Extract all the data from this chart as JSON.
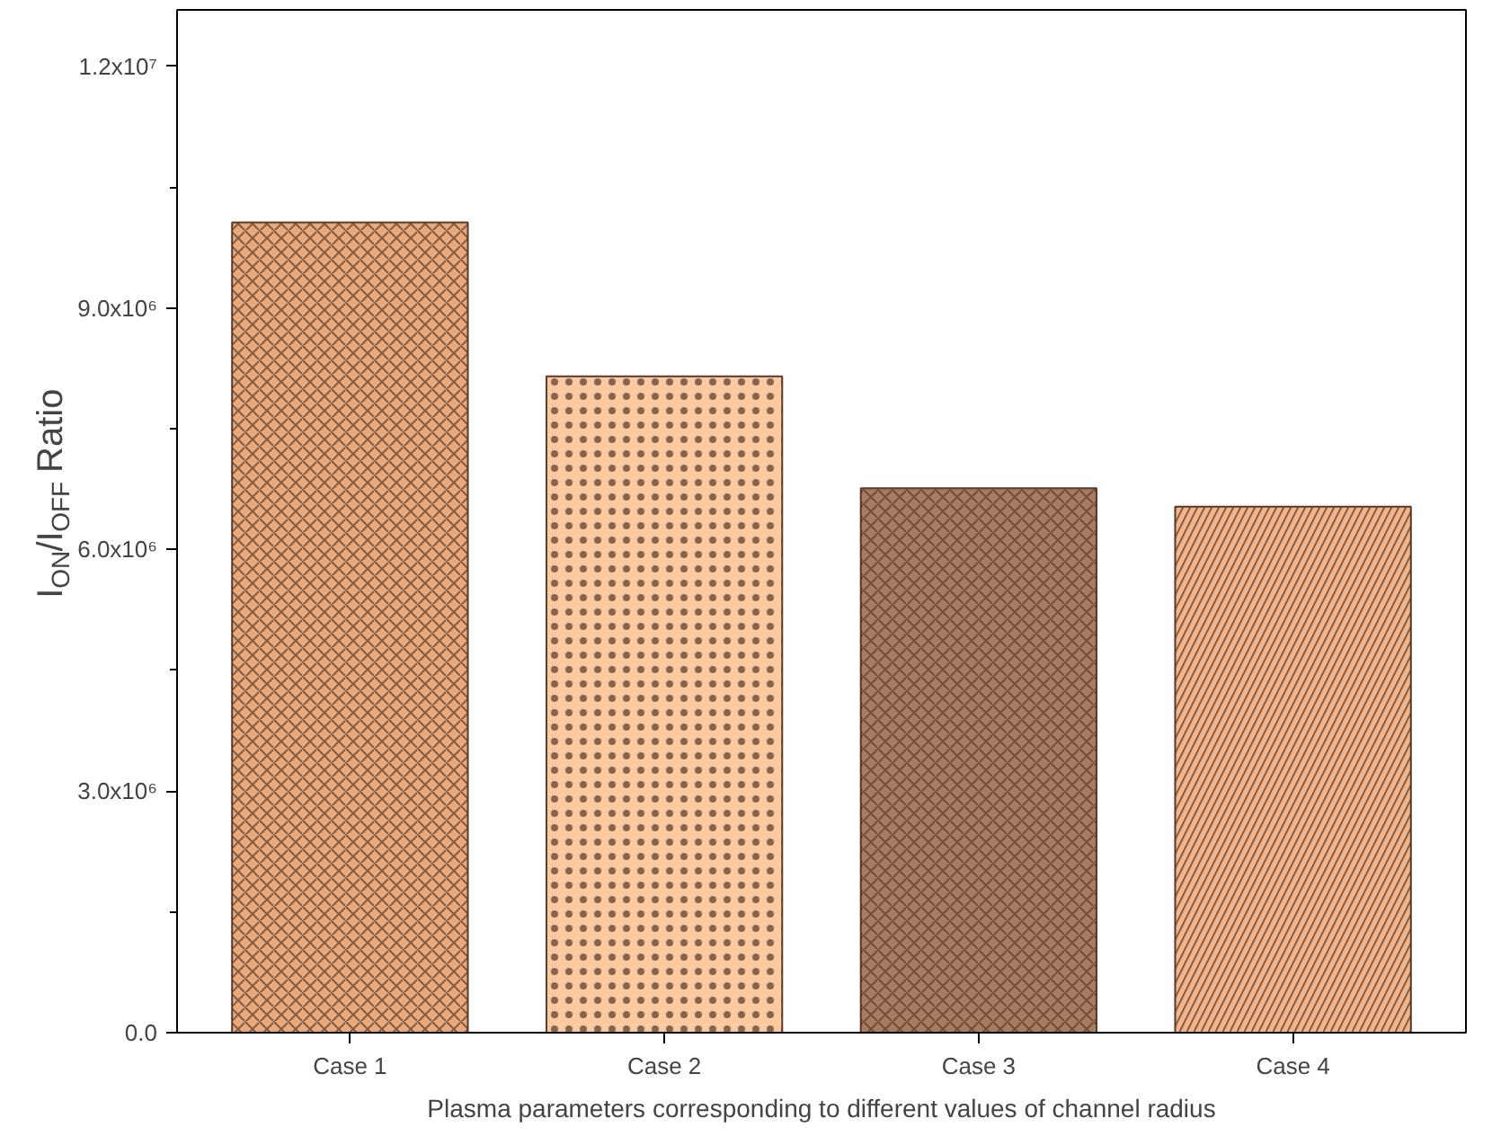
{
  "chart_data": {
    "type": "bar",
    "xlabel": "Plasma parameters corresponding to different values of channel radius",
    "ylabel": "I$_{ON}$/I$_{OFF}$ Ratio",
    "categories": [
      "Case 1",
      "Case 2",
      "Case 3",
      "Case 4"
    ],
    "values": [
      10060000,
      8150000,
      6760000,
      6530000
    ],
    "colors": [
      "#eaa97c",
      "#fdc9a0",
      "#a87c60",
      "#f2b48a"
    ],
    "ylim": [
      0,
      12700000
    ],
    "yticks": [
      {
        "value": 0,
        "label": "0.0"
      },
      {
        "value": 3000000,
        "label": "3.0x10⁶"
      },
      {
        "value": 6000000,
        "label": "6.0x10⁶"
      },
      {
        "value": 9000000,
        "label": "9.0x10⁶"
      },
      {
        "value": 12000000,
        "label": "1.2x10⁷"
      }
    ],
    "grid": false
  }
}
